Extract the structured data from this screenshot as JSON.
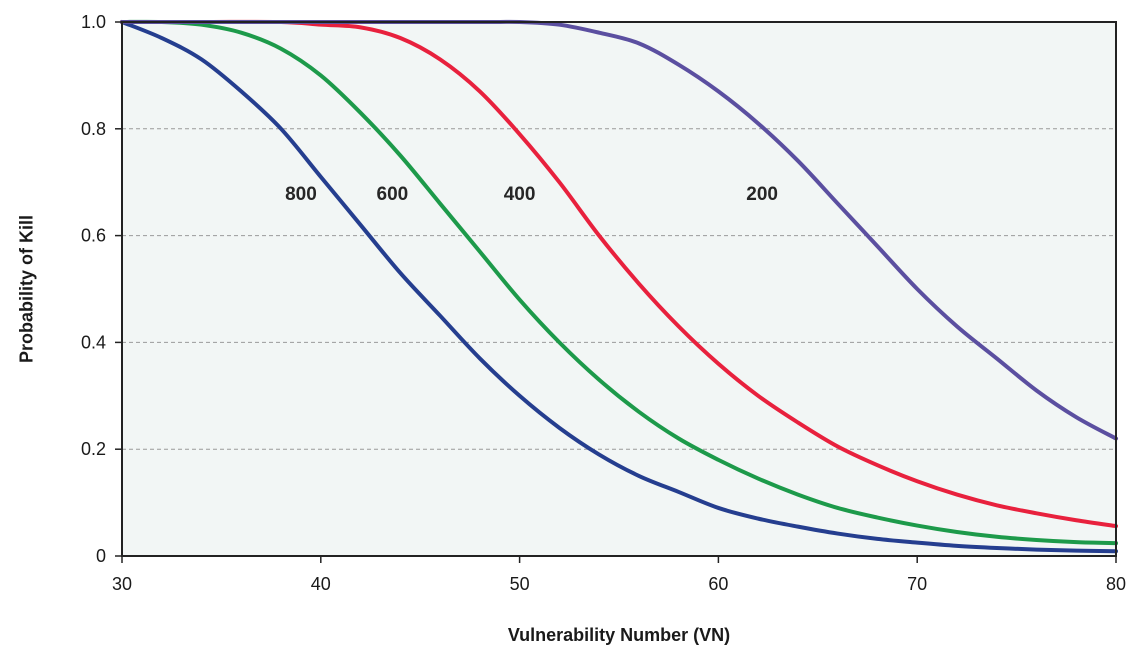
{
  "chart_data": {
    "type": "line",
    "xlabel": "Vulnerability Number (VN)",
    "ylabel": "Probability of Kill",
    "xlim": [
      30,
      80
    ],
    "ylim": [
      0,
      1.0
    ],
    "xticks": [
      30,
      40,
      50,
      60,
      70,
      80
    ],
    "yticks": [
      0,
      0.2,
      0.4,
      0.6,
      0.8,
      1.0
    ],
    "xtick_labels": [
      "30",
      "40",
      "50",
      "60",
      "70",
      "80"
    ],
    "ytick_labels": [
      "0",
      "0.2",
      "0.4",
      "0.6",
      "0.8",
      "1.0"
    ],
    "grid": "horizontal dashed",
    "series": [
      {
        "name": "800",
        "color": "#253e8f",
        "label_at": [
          39,
          0.68
        ],
        "x": [
          30,
          32,
          34,
          36,
          38,
          40,
          42,
          44,
          46,
          48,
          50,
          52,
          54,
          56,
          58,
          60,
          62,
          64,
          66,
          68,
          70,
          72,
          74,
          76,
          78,
          80
        ],
        "y": [
          1.0,
          0.97,
          0.93,
          0.87,
          0.8,
          0.71,
          0.62,
          0.53,
          0.45,
          0.37,
          0.3,
          0.24,
          0.19,
          0.15,
          0.12,
          0.09,
          0.07,
          0.055,
          0.042,
          0.032,
          0.025,
          0.019,
          0.015,
          0.012,
          0.01,
          0.009
        ]
      },
      {
        "name": "600",
        "color": "#1d9a4a",
        "label_at": [
          43.6,
          0.68
        ],
        "x": [
          30,
          32,
          34,
          36,
          38,
          40,
          42,
          44,
          46,
          48,
          50,
          52,
          54,
          56,
          58,
          60,
          62,
          64,
          66,
          68,
          70,
          72,
          74,
          76,
          78,
          80
        ],
        "y": [
          1.0,
          1.0,
          0.995,
          0.98,
          0.95,
          0.9,
          0.83,
          0.75,
          0.66,
          0.57,
          0.48,
          0.4,
          0.33,
          0.27,
          0.22,
          0.18,
          0.145,
          0.115,
          0.09,
          0.072,
          0.057,
          0.045,
          0.036,
          0.03,
          0.026,
          0.024
        ]
      },
      {
        "name": "400",
        "color": "#e8213d",
        "label_at": [
          50,
          0.68
        ],
        "x": [
          30,
          34,
          38,
          40,
          42,
          44,
          46,
          48,
          50,
          52,
          54,
          56,
          58,
          60,
          62,
          64,
          66,
          68,
          70,
          72,
          74,
          76,
          78,
          80
        ],
        "y": [
          1.0,
          1.0,
          1.0,
          0.995,
          0.99,
          0.97,
          0.93,
          0.87,
          0.79,
          0.7,
          0.6,
          0.51,
          0.43,
          0.36,
          0.3,
          0.25,
          0.205,
          0.17,
          0.14,
          0.115,
          0.095,
          0.08,
          0.067,
          0.056
        ]
      },
      {
        "name": "200",
        "color": "#5b4fa0",
        "label_at": [
          62.2,
          0.68
        ],
        "x": [
          30,
          40,
          48,
          50,
          52,
          54,
          56,
          58,
          60,
          62,
          64,
          66,
          68,
          70,
          72,
          74,
          76,
          78,
          80
        ],
        "y": [
          1.0,
          1.0,
          1.0,
          1.0,
          0.995,
          0.98,
          0.96,
          0.92,
          0.87,
          0.81,
          0.74,
          0.66,
          0.58,
          0.5,
          0.43,
          0.37,
          0.31,
          0.26,
          0.22
        ]
      }
    ]
  }
}
